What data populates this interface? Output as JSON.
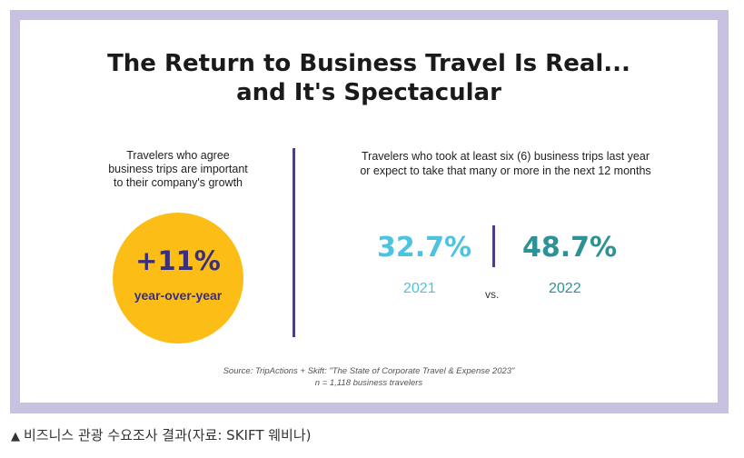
{
  "title": {
    "line1": "The Return to Business Travel Is Real...",
    "line2": "and It's Spectacular"
  },
  "left_panel": {
    "label_lines": [
      "Travelers who agree",
      "business trips are important",
      "to their company's growth"
    ],
    "value": "+11%",
    "value_caption": "year-over-year"
  },
  "right_panel": {
    "label_lines": [
      "Travelers who took at least six (6) business trips last year",
      "or expect to take that many or more in the next 12 months"
    ],
    "stats": [
      {
        "value": "32.7%",
        "year": "2021"
      },
      {
        "value": "48.7%",
        "year": "2022"
      }
    ],
    "vs_label": "vs."
  },
  "source": {
    "line1": "Source: TripActions + Skift: \"The State of Corporate Travel & Expense 2023\"",
    "line2": "n = 1,118 business travelers"
  },
  "caption": {
    "icon": "up-triangle-icon",
    "glyph": "▲",
    "text": "비즈니스 관광 수요조사 결과(자료: SKIFT 웨비나)"
  },
  "colors": {
    "frame": "#c8c2e0",
    "circle": "#fbbd16",
    "purple": "#3a2f7d",
    "stat_2021": "#4ec3e0",
    "stat_2022": "#2e9196"
  }
}
